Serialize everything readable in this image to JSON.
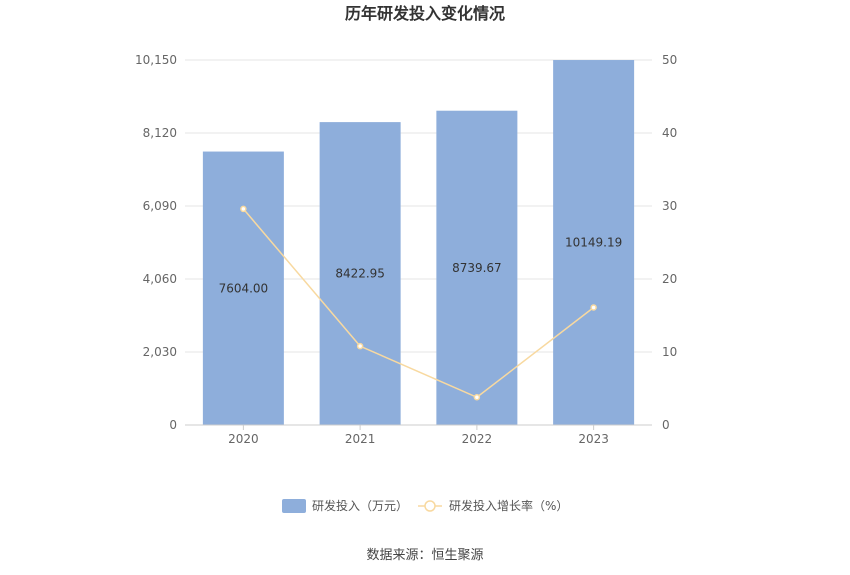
{
  "chart_data": {
    "type": "bar",
    "title": "历年研发投入变化情况",
    "categories": [
      "2020",
      "2021",
      "2022",
      "2023"
    ],
    "series": [
      {
        "name": "研发投入（万元）",
        "type": "bar",
        "axis": "left",
        "values": [
          7604.0,
          8422.95,
          8739.67,
          10149.19
        ],
        "labels": [
          "7604.00",
          "8422.95",
          "8739.67",
          "10149.19"
        ],
        "color": "#8eaedb"
      },
      {
        "name": "研发投入增长率（%）",
        "type": "line",
        "axis": "right",
        "values": [
          29.6,
          10.8,
          3.8,
          16.1
        ],
        "color": "#f8d9a0"
      }
    ],
    "y_left": {
      "ylim": [
        0,
        10150
      ],
      "ticks": [
        "0",
        "2,030",
        "4,060",
        "6,090",
        "8,120",
        "10,150"
      ]
    },
    "y_right": {
      "ylim": [
        0,
        50
      ],
      "ticks": [
        "0",
        "10",
        "20",
        "30",
        "40",
        "50"
      ]
    },
    "grid": true,
    "legend": "bottom",
    "source": "数据来源：恒生聚源"
  }
}
